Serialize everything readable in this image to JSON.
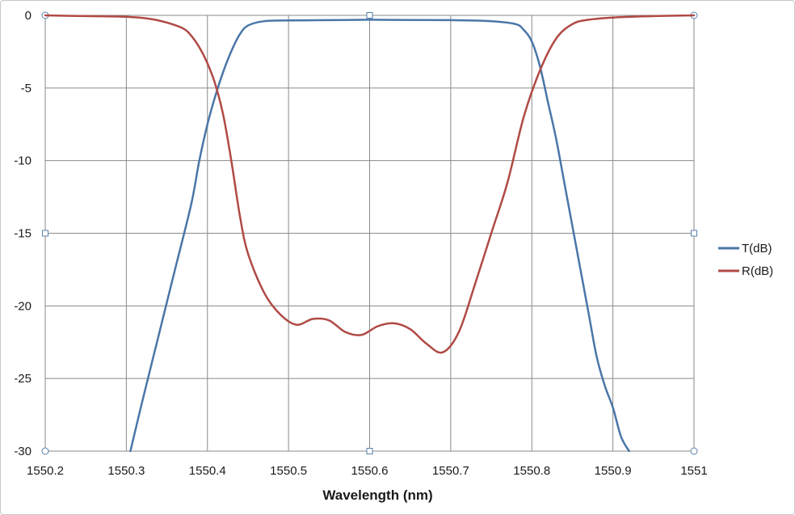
{
  "chart_data": {
    "type": "line",
    "title": "",
    "xlabel": "Wavelength (nm)",
    "ylabel": "",
    "xlim": [
      1550.2,
      1551
    ],
    "ylim": [
      -30,
      0
    ],
    "x_ticks": [
      "1550.2",
      "1550.3",
      "1550.4",
      "1550.5",
      "1550.6",
      "1550.7",
      "1550.8",
      "1550.9",
      "1551"
    ],
    "y_ticks": [
      "0",
      "-5",
      "-10",
      "-15",
      "-20",
      "-25",
      "-30"
    ],
    "grid": true,
    "legend_position": "right",
    "series": [
      {
        "name": "T(dB)",
        "color": "#4a76a8",
        "x": [
          1550.305,
          1550.32,
          1550.34,
          1550.36,
          1550.38,
          1550.39,
          1550.4,
          1550.41,
          1550.42,
          1550.43,
          1550.44,
          1550.45,
          1550.47,
          1550.5,
          1550.55,
          1550.6,
          1550.65,
          1550.7,
          1550.75,
          1550.78,
          1550.79,
          1550.8,
          1550.81,
          1550.82,
          1550.83,
          1550.84,
          1550.85,
          1550.86,
          1550.87,
          1550.88,
          1550.89,
          1550.9,
          1550.91,
          1550.92
        ],
        "y": [
          -30,
          -26.5,
          -22,
          -17.5,
          -13,
          -10,
          -7.5,
          -5.5,
          -3.8,
          -2.4,
          -1.3,
          -0.7,
          -0.4,
          -0.35,
          -0.33,
          -0.3,
          -0.32,
          -0.33,
          -0.4,
          -0.6,
          -1,
          -1.8,
          -3.5,
          -6,
          -8.5,
          -11.5,
          -14.5,
          -17.5,
          -20.5,
          -23.5,
          -25.5,
          -27,
          -29,
          -30
        ]
      },
      {
        "name": "R(dB)",
        "color": "#b04a45",
        "x": [
          1550.2,
          1550.25,
          1550.3,
          1550.33,
          1550.35,
          1550.37,
          1550.38,
          1550.39,
          1550.4,
          1550.41,
          1550.42,
          1550.43,
          1550.44,
          1550.45,
          1550.47,
          1550.49,
          1550.51,
          1550.53,
          1550.55,
          1550.57,
          1550.59,
          1550.61,
          1550.63,
          1550.65,
          1550.67,
          1550.69,
          1550.71,
          1550.73,
          1550.75,
          1550.77,
          1550.79,
          1550.81,
          1550.83,
          1550.85,
          1550.87,
          1550.9,
          1550.95,
          1551.0
        ],
        "y": [
          0,
          -0.05,
          -0.1,
          -0.25,
          -0.5,
          -0.9,
          -1.4,
          -2.2,
          -3.3,
          -4.8,
          -7,
          -10.2,
          -13.8,
          -16.4,
          -19.1,
          -20.6,
          -21.3,
          -20.9,
          -21.0,
          -21.8,
          -22.0,
          -21.4,
          -21.2,
          -21.6,
          -22.6,
          -23.2,
          -21.8,
          -18.5,
          -15.0,
          -11.5,
          -7.0,
          -3.8,
          -1.6,
          -0.6,
          -0.3,
          -0.15,
          -0.05,
          0
        ]
      }
    ]
  }
}
